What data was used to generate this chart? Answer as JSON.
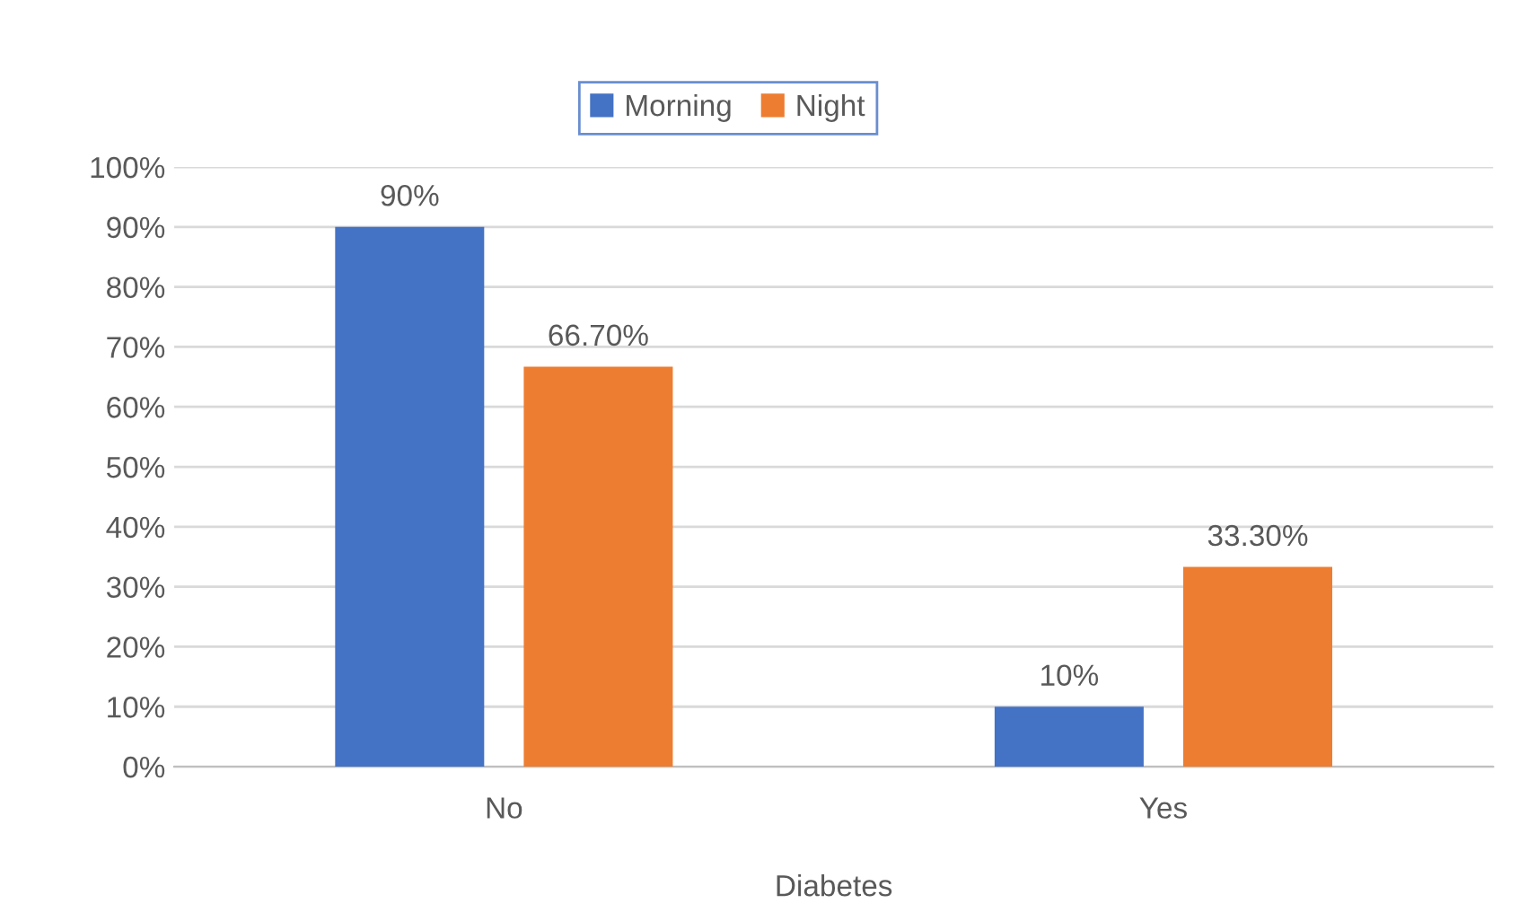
{
  "chart_data": {
    "type": "bar",
    "xlabel": "Diabetes",
    "categories": [
      "No",
      "Yes"
    ],
    "series": [
      {
        "name": "Morning",
        "color": "#4472c4",
        "values": [
          90,
          10
        ],
        "value_labels": [
          "90%",
          "10%"
        ]
      },
      {
        "name": "Night",
        "color": "#ed7d31",
        "values": [
          66.7,
          33.3
        ],
        "value_labels": [
          "66.70%",
          "33.30%"
        ]
      }
    ],
    "ylim": [
      0,
      100
    ],
    "yticks": [
      {
        "value": 0,
        "label": "0%"
      },
      {
        "value": 10,
        "label": "10%"
      },
      {
        "value": 20,
        "label": "20%"
      },
      {
        "value": 30,
        "label": "30%"
      },
      {
        "value": 40,
        "label": "40%"
      },
      {
        "value": 50,
        "label": "50%"
      },
      {
        "value": 60,
        "label": "60%"
      },
      {
        "value": 70,
        "label": "70%"
      },
      {
        "value": 80,
        "label": "80%"
      },
      {
        "value": 90,
        "label": "90%"
      },
      {
        "value": 100,
        "label": "100%"
      }
    ],
    "grid": "y",
    "legend": "top"
  }
}
